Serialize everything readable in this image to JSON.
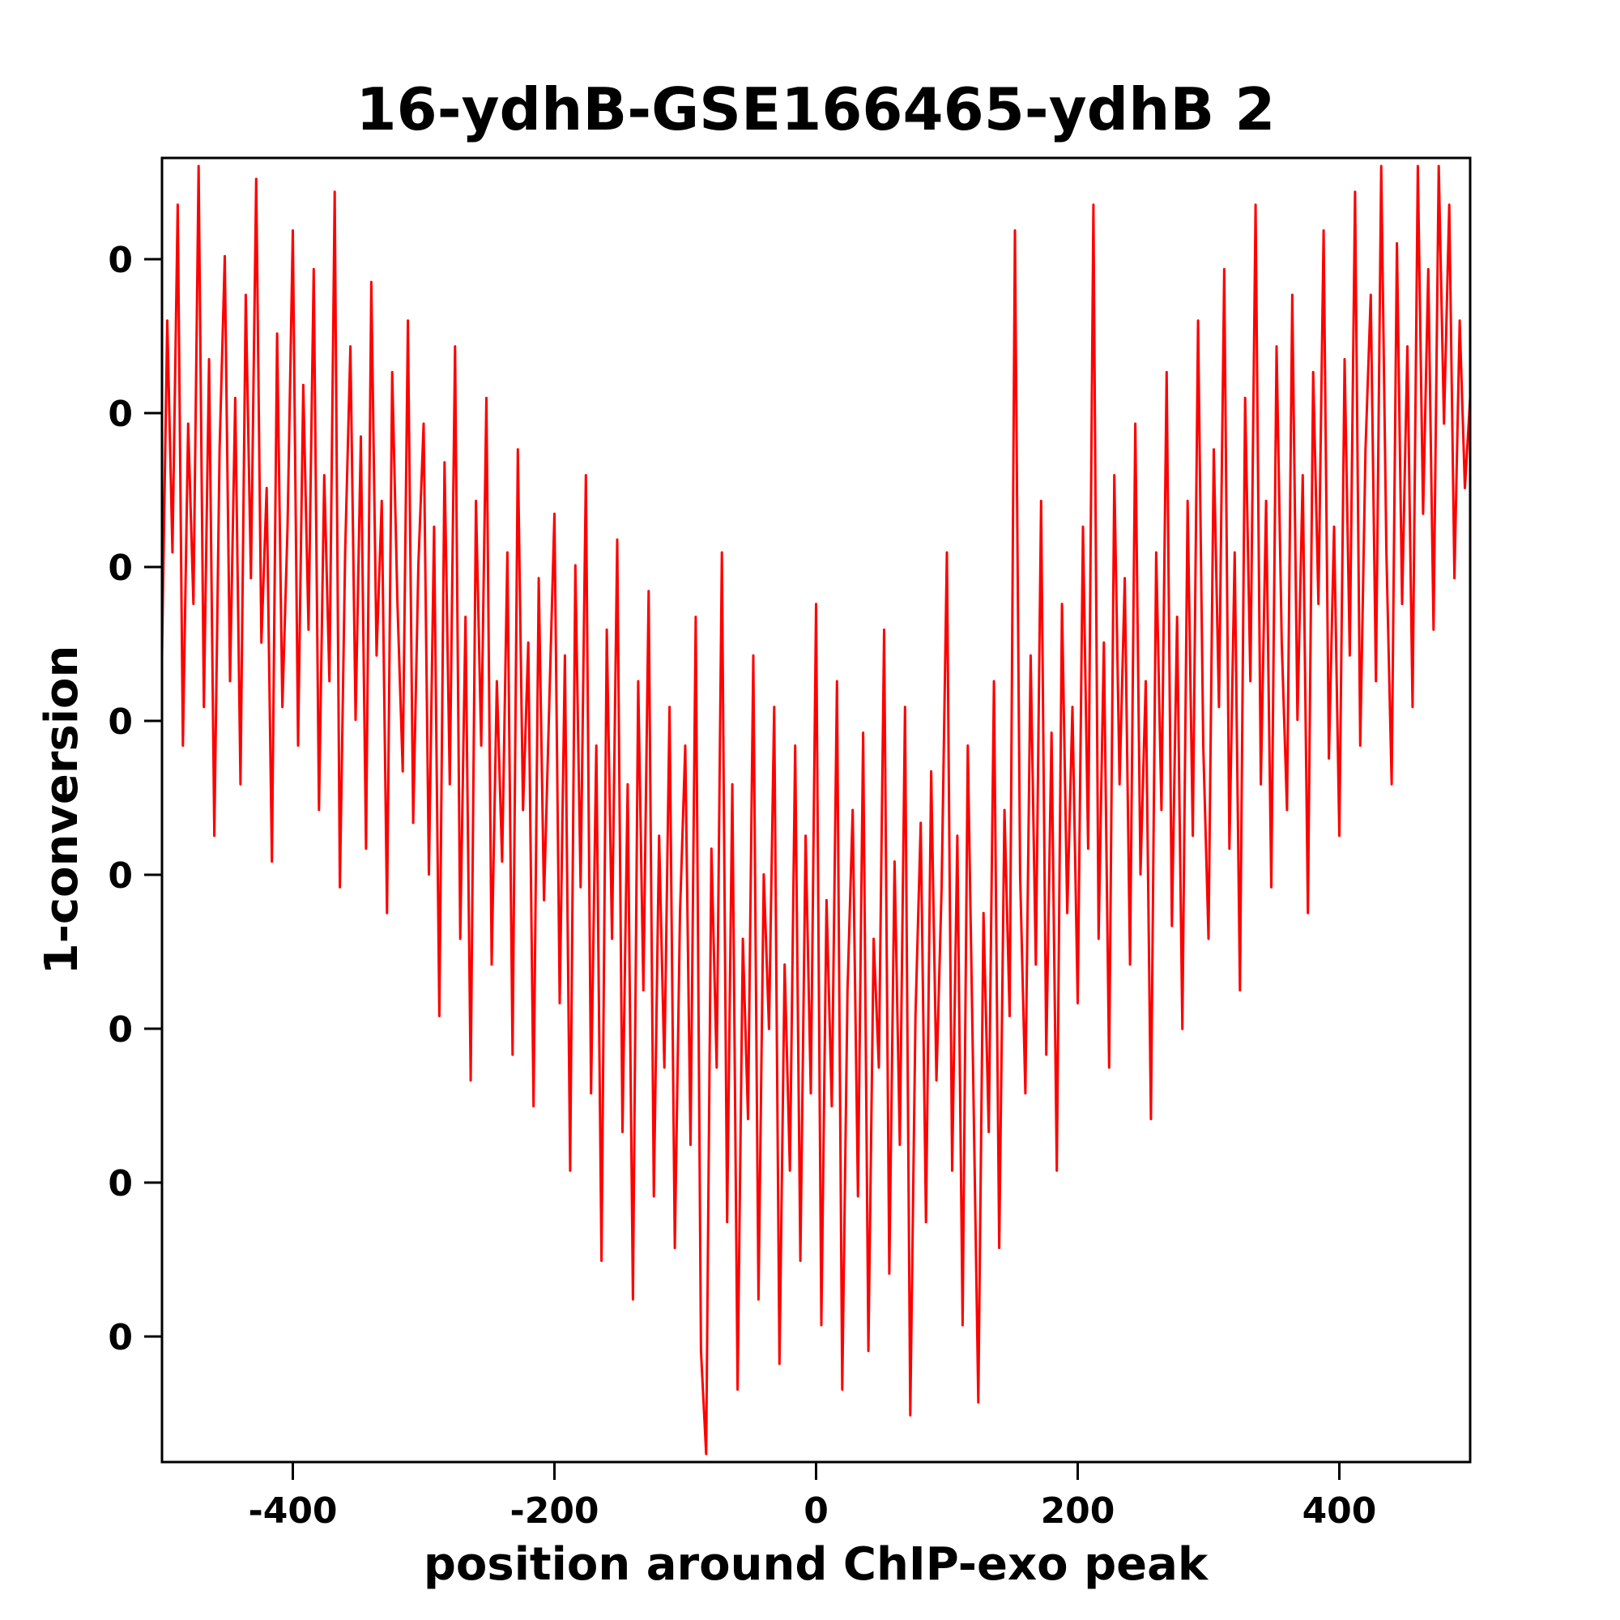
{
  "chart_data": {
    "type": "line",
    "title": "16-ydhB-GSE166465-ydhB 2",
    "xlabel": "position around ChIP-exo peak",
    "ylabel": "1-conversion",
    "xlim": [
      -500,
      500
    ],
    "ylim_normalized": [
      0,
      1
    ],
    "grid": false,
    "legend": "none",
    "line_color": "#ff0000",
    "xtick_values": [
      -400,
      -200,
      0,
      200,
      400
    ],
    "xtick_labels": [
      "-400",
      "-200",
      "0",
      "200",
      "400"
    ],
    "ytick_labels": [
      "0",
      "0",
      "0",
      "0",
      "0",
      "0",
      "0",
      "0"
    ],
    "x_start": -500,
    "x_end": 500,
    "values": [
      0.62,
      0.88,
      0.7,
      0.97,
      0.55,
      0.8,
      0.66,
      1.0,
      0.58,
      0.85,
      0.48,
      0.78,
      0.93,
      0.6,
      0.82,
      0.52,
      0.9,
      0.68,
      0.99,
      0.63,
      0.75,
      0.46,
      0.87,
      0.58,
      0.72,
      0.95,
      0.55,
      0.83,
      0.64,
      0.92,
      0.5,
      0.76,
      0.6,
      0.98,
      0.44,
      0.7,
      0.86,
      0.57,
      0.79,
      0.47,
      0.91,
      0.62,
      0.74,
      0.42,
      0.84,
      0.66,
      0.53,
      0.88,
      0.49,
      0.69,
      0.8,
      0.45,
      0.72,
      0.34,
      0.77,
      0.52,
      0.86,
      0.4,
      0.65,
      0.29,
      0.74,
      0.55,
      0.82,
      0.38,
      0.6,
      0.46,
      0.7,
      0.31,
      0.78,
      0.5,
      0.63,
      0.27,
      0.68,
      0.43,
      0.58,
      0.73,
      0.35,
      0.62,
      0.22,
      0.69,
      0.44,
      0.76,
      0.28,
      0.55,
      0.15,
      0.64,
      0.4,
      0.71,
      0.25,
      0.52,
      0.12,
      0.6,
      0.36,
      0.67,
      0.2,
      0.48,
      0.3,
      0.58,
      0.16,
      0.42,
      0.55,
      0.24,
      0.65,
      0.08,
      0.0,
      0.47,
      0.3,
      0.7,
      0.18,
      0.52,
      0.05,
      0.4,
      0.26,
      0.62,
      0.12,
      0.45,
      0.33,
      0.58,
      0.07,
      0.38,
      0.22,
      0.55,
      0.15,
      0.48,
      0.28,
      0.66,
      0.1,
      0.43,
      0.27,
      0.6,
      0.05,
      0.36,
      0.5,
      0.2,
      0.56,
      0.08,
      0.4,
      0.3,
      0.64,
      0.14,
      0.46,
      0.24,
      0.58,
      0.03,
      0.34,
      0.49,
      0.18,
      0.53,
      0.29,
      0.44,
      0.7,
      0.22,
      0.48,
      0.1,
      0.55,
      0.3,
      0.04,
      0.42,
      0.25,
      0.6,
      0.16,
      0.5,
      0.34,
      0.95,
      0.45,
      0.28,
      0.62,
      0.38,
      0.74,
      0.31,
      0.56,
      0.22,
      0.66,
      0.42,
      0.58,
      0.35,
      0.72,
      0.47,
      0.97,
      0.4,
      0.63,
      0.3,
      0.76,
      0.52,
      0.68,
      0.38,
      0.8,
      0.45,
      0.6,
      0.26,
      0.7,
      0.5,
      0.84,
      0.41,
      0.65,
      0.33,
      0.74,
      0.48,
      0.88,
      0.55,
      0.4,
      0.78,
      0.58,
      0.92,
      0.47,
      0.7,
      0.36,
      0.82,
      0.6,
      0.97,
      0.52,
      0.74,
      0.44,
      0.86,
      0.63,
      0.5,
      0.9,
      0.57,
      0.76,
      0.42,
      0.84,
      0.66,
      0.95,
      0.54,
      0.72,
      0.48,
      0.85,
      0.62,
      0.98,
      0.55,
      0.78,
      0.9,
      0.6,
      1.0,
      0.7,
      0.52,
      0.94,
      0.66,
      0.86,
      0.58,
      1.0,
      0.73,
      0.92,
      0.64,
      1.0,
      0.8,
      0.97,
      0.68,
      0.88,
      0.75,
      0.82
    ]
  }
}
